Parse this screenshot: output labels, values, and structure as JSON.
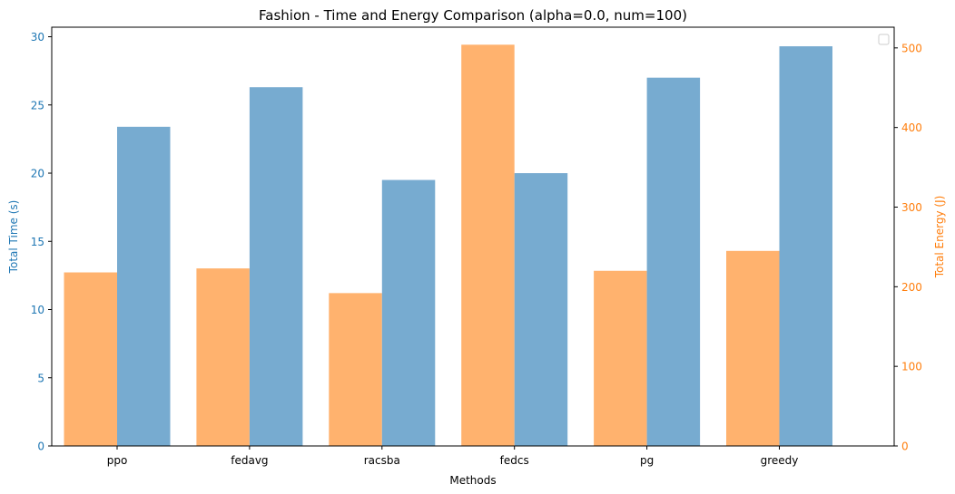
{
  "chart_data": {
    "type": "bar",
    "title": "Fashion - Time and Energy Comparison (alpha=0.0, num=100)",
    "xlabel": "Methods",
    "categories": [
      "ppo",
      "fedavg",
      "racsba",
      "fedcs",
      "pg",
      "greedy"
    ],
    "left_axis": {
      "label": "Total Time (s)",
      "color": "#1f77b4",
      "ylim": [
        0,
        30.7
      ],
      "ticks": [
        0,
        5,
        10,
        15,
        20,
        25,
        30
      ]
    },
    "right_axis": {
      "label": "Total Energy (J)",
      "color": "#ff7f0e",
      "ylim": [
        0,
        526
      ],
      "ticks": [
        0,
        100,
        200,
        300,
        400,
        500
      ]
    },
    "series": [
      {
        "axis": "right",
        "color": "#ffb26e",
        "values": [
          218,
          223,
          192,
          504,
          220,
          245
        ]
      },
      {
        "axis": "left",
        "color": "#77abd0",
        "values": [
          23.4,
          26.3,
          19.5,
          20.0,
          27.0,
          29.3
        ]
      }
    ],
    "legend": {
      "placement": "top-right",
      "entries": []
    },
    "grid": false
  }
}
